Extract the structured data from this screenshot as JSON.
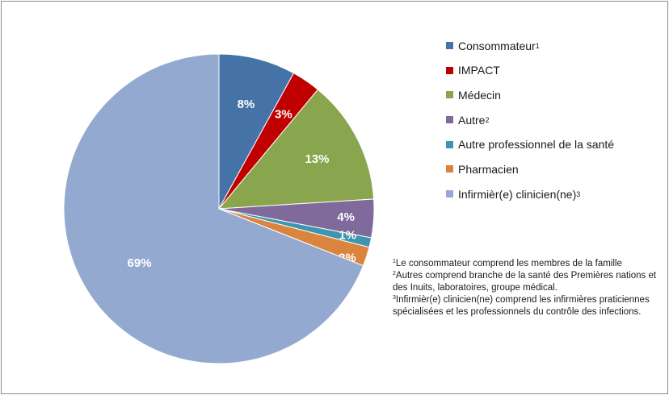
{
  "chart_data": {
    "type": "pie",
    "title": "",
    "legend_position": "right",
    "slices": [
      {
        "label": "Consommateur",
        "sup": "1",
        "value": 8,
        "display": "8%",
        "color": "#4572a7"
      },
      {
        "label": "IMPACT",
        "sup": "",
        "value": 3,
        "display": "3%",
        "color": "#c00000"
      },
      {
        "label": "Médecin",
        "sup": "",
        "value": 13,
        "display": "13%",
        "color": "#89a54e"
      },
      {
        "label": "Autre",
        "sup": "2",
        "value": 4,
        "display": "4%",
        "color": "#80699b"
      },
      {
        "label": "Autre professionnel de la santé",
        "sup": "",
        "value": 1,
        "display": "1%",
        "color": "#3d96ae"
      },
      {
        "label": "Pharmacien",
        "sup": "",
        "value": 2,
        "display": "2%",
        "color": "#db843d"
      },
      {
        "label": "Infirmièr(e) clinicien(ne)",
        "sup": "3",
        "value": 69,
        "display": "69%",
        "color": "#93a9cf"
      }
    ]
  },
  "notes": [
    {
      "sup": "1",
      "text": "Le consommateur comprend les membres de la famille"
    },
    {
      "sup": "2",
      "text": "Autres comprend branche de la santé des Premières nations et des Inuits, laboratoires, groupe médical."
    },
    {
      "sup": "3",
      "text": "Infirmièr(e) clinicien(ne) comprend les infirmières praticiennes  spécialisées et les professionnels du contrôle des infections."
    }
  ]
}
